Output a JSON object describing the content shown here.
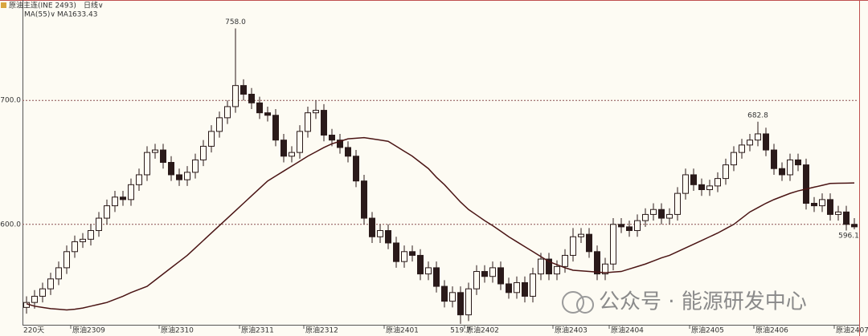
{
  "chart_data": {
    "type": "candlestick",
    "title": "原油主连(INE 2493)",
    "period": "日线∨",
    "indicator": "MA(55)∨",
    "bar_count_label": "220天",
    "watermark": "公众号 · 能源研发中心",
    "ylim": [
      519,
      781
    ],
    "yticks": [
      {
        "value": 600,
        "label": "600.0"
      },
      {
        "value": 700,
        "label": "700.0"
      }
    ],
    "grid": true,
    "up_color": "#fdfbf3",
    "down_color": "#2a1a1a",
    "edge_color": "#2a1a1a",
    "categories": [
      null,
      null,
      null,
      null,
      null,
      null,
      "原油2309",
      null,
      null,
      null,
      null,
      null,
      null,
      null,
      null,
      null,
      null,
      "原油2310",
      null,
      null,
      null,
      null,
      null,
      null,
      null,
      null,
      null,
      "原油2311",
      null,
      null,
      null,
      null,
      null,
      null,
      null,
      "原油2312",
      null,
      null,
      null,
      null,
      null,
      null,
      null,
      null,
      null,
      "原油2401",
      null,
      null,
      null,
      null,
      null,
      null,
      null,
      null,
      null,
      "原油2402",
      null,
      null,
      null,
      null,
      null,
      null,
      null,
      null,
      null,
      null,
      "原油2403",
      null,
      null,
      null,
      null,
      null,
      null,
      "原油2404",
      null,
      null,
      null,
      null,
      null,
      null,
      null,
      null,
      null,
      "原油2405",
      null,
      null,
      null,
      null,
      null,
      null,
      null,
      "原油2406",
      null,
      null,
      null,
      null,
      null,
      null,
      null,
      null,
      null,
      "原油2407",
      null,
      null
    ],
    "open": [
      533,
      537,
      542,
      548,
      556,
      565,
      578,
      586,
      588,
      595,
      605,
      615,
      622,
      620,
      632,
      640,
      658,
      660,
      650,
      640,
      636,
      642,
      652,
      663,
      675,
      686,
      695,
      712,
      705,
      698,
      690,
      688,
      668,
      655,
      658,
      675,
      690,
      692,
      672,
      668,
      662,
      655,
      635,
      605,
      590,
      595,
      585,
      570,
      578,
      575,
      560,
      565,
      550,
      538,
      545,
      527,
      548,
      562,
      558,
      565,
      552,
      545,
      553,
      542,
      560,
      572,
      560,
      566,
      575,
      590,
      592,
      578,
      560,
      568,
      600,
      598,
      595,
      603,
      608,
      612,
      605,
      608,
      625,
      640,
      632,
      628,
      631,
      637,
      648,
      658,
      664,
      668,
      673,
      660,
      645,
      640,
      652,
      648,
      617,
      615,
      620,
      608,
      610,
      600
    ],
    "high": [
      542,
      547,
      553,
      561,
      570,
      583,
      591,
      593,
      600,
      610,
      620,
      627,
      627,
      637,
      645,
      663,
      665,
      665,
      655,
      645,
      647,
      657,
      668,
      680,
      691,
      700,
      758,
      717,
      710,
      703,
      695,
      693,
      673,
      663,
      680,
      695,
      700,
      697,
      677,
      673,
      667,
      660,
      640,
      610,
      600,
      600,
      590,
      583,
      583,
      580,
      570,
      570,
      555,
      550,
      550,
      553,
      567,
      567,
      570,
      570,
      557,
      558,
      558,
      565,
      577,
      577,
      571,
      580,
      597,
      597,
      597,
      583,
      573,
      605,
      605,
      603,
      608,
      613,
      617,
      617,
      613,
      630,
      645,
      645,
      637,
      636,
      642,
      653,
      663,
      669,
      673,
      682.8,
      678,
      665,
      650,
      657,
      657,
      653,
      622,
      625,
      625,
      615,
      615,
      605
    ],
    "low": [
      528,
      532,
      537,
      543,
      551,
      560,
      573,
      581,
      583,
      590,
      600,
      610,
      615,
      615,
      627,
      635,
      653,
      645,
      635,
      631,
      631,
      637,
      647,
      658,
      670,
      681,
      690,
      700,
      693,
      685,
      683,
      663,
      650,
      650,
      653,
      670,
      685,
      667,
      663,
      657,
      650,
      630,
      600,
      585,
      585,
      580,
      565,
      565,
      570,
      555,
      555,
      545,
      533,
      533,
      519.7,
      522,
      543,
      553,
      553,
      547,
      540,
      540,
      537,
      537,
      555,
      555,
      555,
      561,
      570,
      585,
      573,
      555,
      555,
      563,
      593,
      590,
      590,
      598,
      603,
      600,
      600,
      603,
      620,
      627,
      623,
      623,
      626,
      632,
      643,
      653,
      659,
      663,
      655,
      640,
      635,
      635,
      643,
      612,
      610,
      610,
      603,
      603,
      595,
      596.1
    ],
    "close": [
      537,
      542,
      548,
      556,
      565,
      578,
      586,
      588,
      595,
      605,
      615,
      622,
      620,
      632,
      640,
      658,
      660,
      650,
      640,
      636,
      642,
      652,
      663,
      675,
      686,
      695,
      712,
      705,
      698,
      690,
      688,
      668,
      655,
      658,
      675,
      690,
      692,
      672,
      668,
      662,
      655,
      635,
      605,
      590,
      595,
      585,
      570,
      578,
      575,
      560,
      565,
      550,
      538,
      545,
      527,
      548,
      562,
      558,
      565,
      552,
      545,
      553,
      542,
      560,
      572,
      560,
      566,
      575,
      590,
      592,
      578,
      560,
      568,
      600,
      598,
      595,
      603,
      608,
      612,
      605,
      608,
      625,
      640,
      632,
      628,
      631,
      637,
      648,
      658,
      664,
      668,
      673,
      660,
      645,
      640,
      652,
      648,
      617,
      615,
      620,
      608,
      610,
      600,
      598
    ],
    "ma": {
      "name": "MA1",
      "last": 633.43,
      "color": "#4a1414",
      "values": [
        536,
        534,
        533,
        532,
        531.5,
        531,
        531.5,
        532.5,
        534,
        535.5,
        537,
        539.5,
        542,
        545,
        547.5,
        550,
        555,
        560,
        565,
        570,
        575,
        581,
        587,
        593,
        599,
        605,
        611,
        617,
        623,
        629,
        635,
        639,
        643,
        647,
        651,
        655,
        658.5,
        662,
        665,
        667,
        669,
        669.5,
        670,
        669,
        668,
        667,
        663,
        659,
        655,
        650,
        645,
        638,
        632,
        625,
        618,
        612,
        607.5,
        603,
        599,
        594.5,
        590,
        586,
        582,
        578,
        574,
        570,
        567.5,
        565,
        563,
        562.5,
        562,
        561.5,
        561,
        561.5,
        562,
        564,
        566,
        568,
        570.5,
        573,
        575,
        578,
        581,
        584,
        587,
        590,
        593,
        596.5,
        600,
        605,
        610,
        613.5,
        617,
        620,
        622.5,
        625,
        627,
        628.5,
        630,
        631.5,
        633,
        633.2,
        633.3,
        633.43
      ]
    },
    "high_labels": [
      {
        "label": "758.0",
        "value": 758
      },
      {
        "label": "682.8",
        "value": 682.8
      }
    ],
    "low_labels": [
      {
        "label": "519.7",
        "value": 519.7
      },
      {
        "label": "596.1",
        "value": 596.1
      }
    ]
  }
}
